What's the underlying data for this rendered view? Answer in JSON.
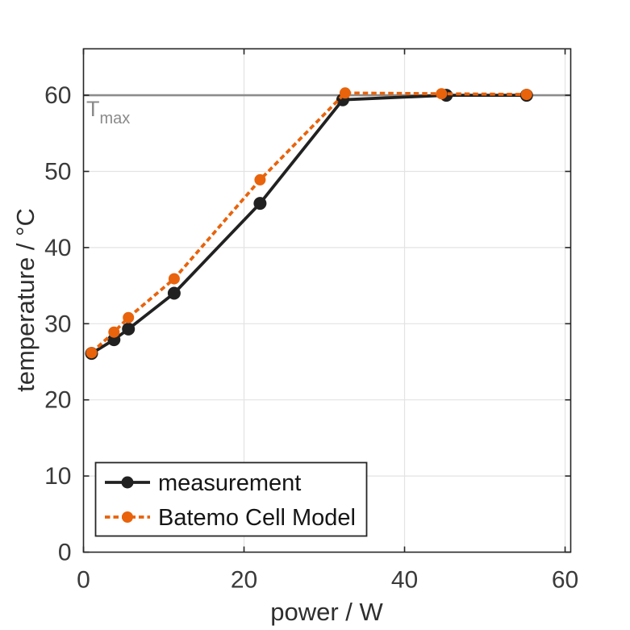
{
  "chart_data": {
    "type": "line",
    "title": "",
    "xlabel": "power / W",
    "ylabel": "temperature / °C",
    "xlim": [
      0,
      60.7
    ],
    "ylim": [
      0,
      66.1
    ],
    "xticks": [
      0,
      20,
      40,
      60
    ],
    "yticks": [
      0,
      10,
      20,
      30,
      40,
      50,
      60
    ],
    "grid": true,
    "legend_position": "inside-bottom-left",
    "series": [
      {
        "name": "measurement",
        "color": "#212121",
        "line_style": "solid",
        "marker": "circle",
        "points": [
          [
            1.0,
            26.1
          ],
          [
            3.8,
            27.9
          ],
          [
            5.6,
            29.3
          ],
          [
            11.3,
            34.0
          ],
          [
            22.0,
            45.8
          ],
          [
            32.3,
            59.4
          ],
          [
            45.2,
            60.0
          ],
          [
            55.2,
            60.0
          ]
        ]
      },
      {
        "name": "Batemo Cell Model",
        "color": "#e8630c",
        "line_style": "dotted",
        "marker": "circle",
        "points": [
          [
            1.0,
            26.2
          ],
          [
            3.8,
            28.9
          ],
          [
            5.6,
            30.8
          ],
          [
            11.3,
            35.9
          ],
          [
            22.0,
            48.9
          ],
          [
            32.6,
            60.3
          ],
          [
            44.6,
            60.2
          ],
          [
            55.2,
            60.1
          ]
        ]
      }
    ],
    "annotations": [
      {
        "type": "hline",
        "y": 60,
        "label_main": "T",
        "label_sub": "max",
        "color": "#8c8c8c"
      }
    ]
  },
  "colors": {
    "background": "#ffffff",
    "axis": "#262626",
    "grid": "#e3e3e3",
    "tick_text": "#3a3a3a",
    "tmax_line": "#8c8c8c",
    "tmax_text": "#8a8a8a",
    "measurement": "#212121",
    "model_orange": "#e8630c"
  }
}
